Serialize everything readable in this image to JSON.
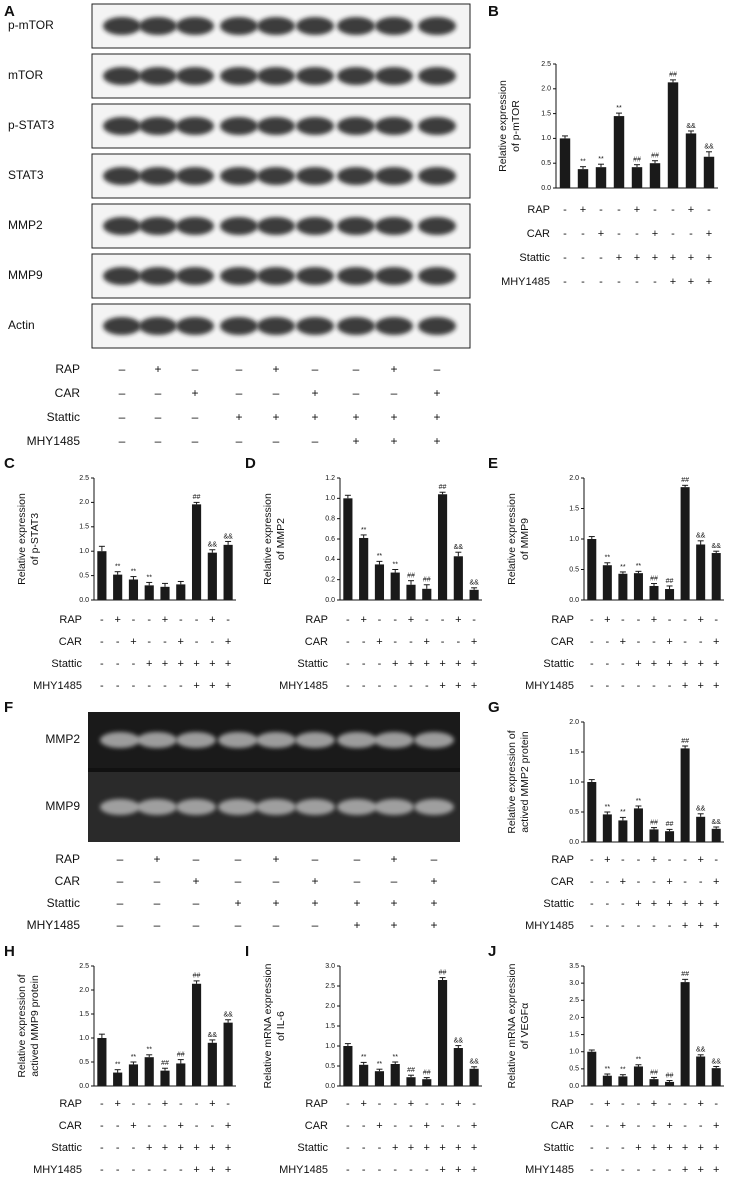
{
  "blots": {
    "letter": "A",
    "bands": [
      "p-mTOR",
      "mTOR",
      "p-STAT3",
      "STAT3",
      "MMP2",
      "MMP9",
      "Actin"
    ],
    "treatments": [
      {
        "label": "RAP",
        "signs": [
          "–",
          "+",
          "–",
          "–",
          "+",
          "–",
          "–",
          "+",
          "–"
        ]
      },
      {
        "label": "CAR",
        "signs": [
          "–",
          "–",
          "+",
          "–",
          "–",
          "+",
          "–",
          "–",
          "+"
        ]
      },
      {
        "label": "Stattic",
        "signs": [
          "–",
          "–",
          "–",
          "+",
          "+",
          "+",
          "+",
          "+",
          "+"
        ]
      },
      {
        "label": "MHY1485",
        "signs": [
          "–",
          "–",
          "–",
          "–",
          "–",
          "–",
          "+",
          "+",
          "+"
        ]
      }
    ]
  },
  "gel": {
    "letter": "F",
    "bands": [
      "MMP2",
      "MMP9"
    ],
    "treatments": [
      {
        "label": "RAP",
        "signs": [
          "–",
          "+",
          "–",
          "–",
          "+",
          "–",
          "–",
          "+",
          "–"
        ]
      },
      {
        "label": "CAR",
        "signs": [
          "–",
          "–",
          "+",
          "–",
          "–",
          "+",
          "–",
          "–",
          "+"
        ]
      },
      {
        "label": "Stattic",
        "signs": [
          "–",
          "–",
          "–",
          "+",
          "+",
          "+",
          "+",
          "+",
          "+"
        ]
      },
      {
        "label": "MHY1485",
        "signs": [
          "–",
          "–",
          "–",
          "–",
          "–",
          "–",
          "+",
          "+",
          "+"
        ]
      }
    ]
  },
  "chart_data": [
    {
      "type": "bar",
      "letter": "B",
      "ylabel": [
        "Relative  expression",
        "of p-mTOR"
      ],
      "color": "#1a1a1a",
      "ylim": [
        0,
        2.5
      ],
      "yticks": [
        {
          "value": 0,
          "label": "0.0"
        },
        0.5,
        {
          "value": 1,
          "label": "1.0"
        },
        1.5,
        {
          "value": 2,
          "label": "2.0"
        },
        2.5
      ],
      "values": [
        1.0,
        0.38,
        0.42,
        1.45,
        0.42,
        0.5,
        2.13,
        1.1,
        0.63
      ],
      "errors": [
        0.05,
        0.05,
        0.06,
        0.06,
        0.05,
        0.05,
        0.05,
        0.05,
        0.1
      ],
      "annotations": [
        null,
        "**",
        "**",
        "**",
        "##",
        "##",
        "##",
        "&&",
        "&&"
      ],
      "treatments": [
        {
          "label": "RAP",
          "signs": [
            "-",
            "+",
            "-",
            "-",
            "+",
            "-",
            "-",
            "+",
            "-"
          ]
        },
        {
          "label": "CAR",
          "signs": [
            "-",
            "-",
            "+",
            "-",
            "-",
            "+",
            "-",
            "-",
            "+"
          ]
        },
        {
          "label": "Stattic",
          "signs": [
            "-",
            "-",
            "-",
            "+",
            "+",
            "+",
            "+",
            "+",
            "+"
          ]
        },
        {
          "label": "MHY1485",
          "signs": [
            "-",
            "-",
            "-",
            "-",
            "-",
            "-",
            "+",
            "+",
            "+"
          ]
        }
      ]
    },
    {
      "type": "bar",
      "letter": "C",
      "ylabel": [
        "Relative expression",
        "of p-STAT3"
      ],
      "color": "#1a1a1a",
      "ylim": [
        0,
        2.5
      ],
      "yticks": [
        {
          "value": 0,
          "label": "0.0"
        },
        0.5,
        {
          "value": 1,
          "label": "1.0"
        },
        1.5,
        {
          "value": 2,
          "label": "2.0"
        },
        2.5
      ],
      "values": [
        1.0,
        0.52,
        0.42,
        0.3,
        0.27,
        0.32,
        1.96,
        0.97,
        1.13
      ],
      "errors": [
        0.1,
        0.06,
        0.06,
        0.06,
        0.07,
        0.06,
        0.04,
        0.06,
        0.07
      ],
      "annotations": [
        null,
        "**",
        "**",
        "**",
        null,
        null,
        "##",
        "&&",
        "&&"
      ],
      "treatments": [
        {
          "label": "RAP",
          "signs": [
            "-",
            "+",
            "-",
            "-",
            "+",
            "-",
            "-",
            "+",
            "-"
          ]
        },
        {
          "label": "CAR",
          "signs": [
            "-",
            "-",
            "+",
            "-",
            "-",
            "+",
            "-",
            "-",
            "+"
          ]
        },
        {
          "label": "Stattic",
          "signs": [
            "-",
            "-",
            "-",
            "+",
            "+",
            "+",
            "+",
            "+",
            "+"
          ]
        },
        {
          "label": "MHY1485",
          "signs": [
            "-",
            "-",
            "-",
            "-",
            "-",
            "-",
            "+",
            "+",
            "+"
          ]
        }
      ]
    },
    {
      "type": "bar",
      "letter": "D",
      "ylabel": [
        "Relative  expression",
        "of  MMP2"
      ],
      "color": "#1a1a1a",
      "ylim": [
        0,
        1.2
      ],
      "yticks": [
        {
          "value": 0,
          "label": "0.0"
        },
        0.2,
        0.4,
        0.6,
        0.8,
        {
          "value": 1,
          "label": "1.0"
        },
        1.2
      ],
      "values": [
        1.0,
        0.61,
        0.35,
        0.27,
        0.15,
        0.11,
        1.04,
        0.43,
        0.1
      ],
      "errors": [
        0.03,
        0.03,
        0.03,
        0.03,
        0.04,
        0.04,
        0.02,
        0.04,
        0.02
      ],
      "annotations": [
        null,
        "**",
        "**",
        "**",
        "##",
        "##",
        "##",
        "&&",
        "&&"
      ],
      "treatments": [
        {
          "label": "RAP",
          "signs": [
            "-",
            "+",
            "-",
            "-",
            "+",
            "-",
            "-",
            "+",
            "-"
          ]
        },
        {
          "label": "CAR",
          "signs": [
            "-",
            "-",
            "+",
            "-",
            "-",
            "+",
            "-",
            "-",
            "+"
          ]
        },
        {
          "label": "Stattic",
          "signs": [
            "-",
            "-",
            "-",
            "+",
            "+",
            "+",
            "+",
            "+",
            "+"
          ]
        },
        {
          "label": "MHY1485",
          "signs": [
            "-",
            "-",
            "-",
            "-",
            "-",
            "-",
            "+",
            "+",
            "+"
          ]
        }
      ]
    },
    {
      "type": "bar",
      "letter": "E",
      "ylabel": [
        "Relative expression",
        "of MMP9"
      ],
      "color": "#1a1a1a",
      "ylim": [
        0,
        2.0
      ],
      "yticks": [
        {
          "value": 0,
          "label": "0.0"
        },
        0.5,
        {
          "value": 1,
          "label": "1.0"
        },
        1.5,
        {
          "value": 2,
          "label": "2.0"
        }
      ],
      "values": [
        1.0,
        0.57,
        0.43,
        0.44,
        0.23,
        0.18,
        1.85,
        0.91,
        0.77
      ],
      "errors": [
        0.04,
        0.04,
        0.03,
        0.03,
        0.04,
        0.05,
        0.03,
        0.06,
        0.03
      ],
      "annotations": [
        null,
        "**",
        "**",
        "**",
        "##",
        "##",
        "##",
        "&&",
        "&&"
      ],
      "treatments": [
        {
          "label": "RAP",
          "signs": [
            "-",
            "+",
            "-",
            "-",
            "+",
            "-",
            "-",
            "+",
            "-"
          ]
        },
        {
          "label": "CAR",
          "signs": [
            "-",
            "-",
            "+",
            "-",
            "-",
            "+",
            "-",
            "-",
            "+"
          ]
        },
        {
          "label": "Stattic",
          "signs": [
            "-",
            "-",
            "-",
            "+",
            "+",
            "+",
            "+",
            "+",
            "+"
          ]
        },
        {
          "label": "MHY1485",
          "signs": [
            "-",
            "-",
            "-",
            "-",
            "-",
            "-",
            "+",
            "+",
            "+"
          ]
        }
      ]
    },
    {
      "type": "bar",
      "letter": "G",
      "ylabel": [
        "Relative expression of",
        "actived MMP2 protein"
      ],
      "color": "#1a1a1a",
      "ylim": [
        0,
        2.0
      ],
      "yticks": [
        {
          "value": 0,
          "label": "0.0"
        },
        0.5,
        {
          "value": 1,
          "label": "1.0"
        },
        1.5,
        {
          "value": 2,
          "label": "2.0"
        }
      ],
      "values": [
        1.0,
        0.46,
        0.36,
        0.56,
        0.21,
        0.18,
        1.56,
        0.42,
        0.22
      ],
      "errors": [
        0.04,
        0.04,
        0.05,
        0.04,
        0.03,
        0.03,
        0.04,
        0.05,
        0.03
      ],
      "annotations": [
        null,
        "**",
        "**",
        "**",
        "##",
        "##",
        "##",
        "&&",
        "&&"
      ],
      "treatments": [
        {
          "label": "RAP",
          "signs": [
            "-",
            "+",
            "-",
            "-",
            "+",
            "-",
            "-",
            "+",
            "-"
          ]
        },
        {
          "label": "CAR",
          "signs": [
            "-",
            "-",
            "+",
            "-",
            "-",
            "+",
            "-",
            "-",
            "+"
          ]
        },
        {
          "label": "Stattic",
          "signs": [
            "-",
            "-",
            "-",
            "+",
            "+",
            "+",
            "+",
            "+",
            "+"
          ]
        },
        {
          "label": "MHY1485",
          "signs": [
            "-",
            "-",
            "-",
            "-",
            "-",
            "-",
            "+",
            "+",
            "+"
          ]
        }
      ]
    },
    {
      "type": "bar",
      "letter": "H",
      "ylabel": [
        "Relative expression of",
        "actived MMP9 protein"
      ],
      "color": "#1a1a1a",
      "ylim": [
        0,
        2.5
      ],
      "yticks": [
        {
          "value": 0,
          "label": "0.0"
        },
        0.5,
        {
          "value": 1,
          "label": "1.0"
        },
        1.5,
        {
          "value": 2,
          "label": "2.0"
        },
        2.5
      ],
      "values": [
        1.0,
        0.28,
        0.45,
        0.6,
        0.32,
        0.47,
        2.13,
        0.9,
        1.32
      ],
      "errors": [
        0.08,
        0.06,
        0.05,
        0.05,
        0.05,
        0.08,
        0.06,
        0.06,
        0.06
      ],
      "annotations": [
        null,
        "**",
        "**",
        "**",
        "##",
        "##",
        "##",
        "&&",
        "&&"
      ],
      "treatments": [
        {
          "label": "RAP",
          "signs": [
            "-",
            "+",
            "-",
            "-",
            "+",
            "-",
            "-",
            "+",
            "-"
          ]
        },
        {
          "label": "CAR",
          "signs": [
            "-",
            "-",
            "+",
            "-",
            "-",
            "+",
            "-",
            "-",
            "+"
          ]
        },
        {
          "label": "Stattic",
          "signs": [
            "-",
            "-",
            "-",
            "+",
            "+",
            "+",
            "+",
            "+",
            "+"
          ]
        },
        {
          "label": "MHY1485",
          "signs": [
            "-",
            "-",
            "-",
            "-",
            "-",
            "-",
            "+",
            "+",
            "+"
          ]
        }
      ]
    },
    {
      "type": "bar",
      "letter": "I",
      "ylabel": [
        "Relative mRNA expression",
        "of IL-6"
      ],
      "color": "#1a1a1a",
      "ylim": [
        0,
        3.0
      ],
      "yticks": [
        {
          "value": 0,
          "label": "0.0"
        },
        0.5,
        {
          "value": 1,
          "label": "1.0"
        },
        1.5,
        {
          "value": 2,
          "label": "2.0"
        },
        2.5,
        {
          "value": 3,
          "label": "3.0"
        }
      ],
      "values": [
        1.0,
        0.53,
        0.37,
        0.55,
        0.22,
        0.17,
        2.65,
        0.95,
        0.43
      ],
      "errors": [
        0.06,
        0.06,
        0.05,
        0.05,
        0.05,
        0.04,
        0.06,
        0.06,
        0.05
      ],
      "annotations": [
        null,
        "**",
        "**",
        "**",
        "##",
        "##",
        "##",
        "&&",
        "&&"
      ],
      "treatments": [
        {
          "label": "RAP",
          "signs": [
            "-",
            "+",
            "-",
            "-",
            "+",
            "-",
            "-",
            "+",
            "-"
          ]
        },
        {
          "label": "CAR",
          "signs": [
            "-",
            "-",
            "+",
            "-",
            "-",
            "+",
            "-",
            "-",
            "+"
          ]
        },
        {
          "label": "Stattic",
          "signs": [
            "-",
            "-",
            "-",
            "+",
            "+",
            "+",
            "+",
            "+",
            "+"
          ]
        },
        {
          "label": "MHY1485",
          "signs": [
            "-",
            "-",
            "-",
            "-",
            "-",
            "-",
            "+",
            "+",
            "+"
          ]
        }
      ]
    },
    {
      "type": "bar",
      "letter": "J",
      "ylabel": [
        "Relative mRNA expression",
        "of VEGFα"
      ],
      "color": "#1a1a1a",
      "ylim": [
        0,
        3.5
      ],
      "yticks": [
        {
          "value": 0,
          "label": "0.0"
        },
        0.5,
        {
          "value": 1,
          "label": "1.0"
        },
        1.5,
        {
          "value": 2,
          "label": "2.0"
        },
        2.5,
        {
          "value": 3,
          "label": "3.0"
        },
        3.5
      ],
      "values": [
        1.0,
        0.3,
        0.28,
        0.57,
        0.2,
        0.12,
        3.03,
        0.86,
        0.52
      ],
      "errors": [
        0.05,
        0.05,
        0.05,
        0.05,
        0.05,
        0.04,
        0.08,
        0.05,
        0.05
      ],
      "annotations": [
        null,
        "**",
        "**",
        "**",
        "##",
        "##",
        "##",
        "&&",
        "&&"
      ],
      "treatments": [
        {
          "label": "RAP",
          "signs": [
            "-",
            "+",
            "-",
            "-",
            "+",
            "-",
            "-",
            "+",
            "-"
          ]
        },
        {
          "label": "CAR",
          "signs": [
            "-",
            "-",
            "+",
            "-",
            "-",
            "+",
            "-",
            "-",
            "+"
          ]
        },
        {
          "label": "Stattic",
          "signs": [
            "-",
            "-",
            "-",
            "+",
            "+",
            "+",
            "+",
            "+",
            "+"
          ]
        },
        {
          "label": "MHY1485",
          "signs": [
            "-",
            "-",
            "-",
            "-",
            "-",
            "-",
            "+",
            "+",
            "+"
          ]
        }
      ]
    }
  ]
}
